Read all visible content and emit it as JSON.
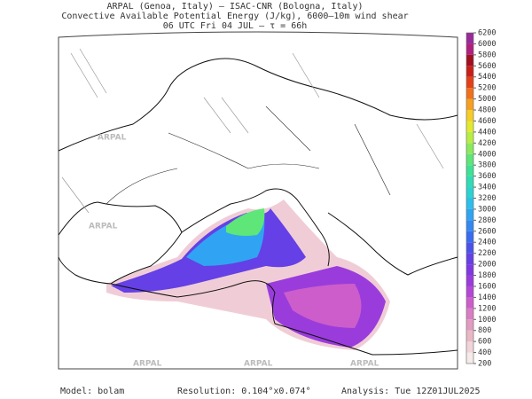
{
  "header": {
    "line1": "ARPAL (Genoa, Italy)  –  ISAC-CNR (Bologna, Italy)",
    "line2": "Convective Available Potential Energy (J/kg), 6000–10m wind shear",
    "line3": "06 UTC Fri 04 JUL  –  τ = 66h"
  },
  "watermark": "ARPAL",
  "colorbar": {
    "ticks": [
      200,
      400,
      600,
      800,
      1000,
      1200,
      1400,
      1600,
      1800,
      2000,
      2200,
      2400,
      2600,
      2800,
      3000,
      3200,
      3400,
      3600,
      3800,
      4000,
      4200,
      4400,
      4600,
      4800,
      5000,
      5200,
      5400,
      5600,
      5800,
      6000,
      6200
    ],
    "colors": [
      "#f6eaea",
      "#f0d4d8",
      "#e9b8c4",
      "#e29cc0",
      "#da7dc4",
      "#cc5dcb",
      "#b447d6",
      "#9a3cdc",
      "#7e39e2",
      "#6440e6",
      "#4a52ea",
      "#3a6cf0",
      "#3388f2",
      "#30a4f2",
      "#2bbfea",
      "#2bd2d2",
      "#30dcb4",
      "#3ee294",
      "#5ee678",
      "#8aea5c",
      "#b8ee44",
      "#e2ea30",
      "#f6cc28",
      "#f6a022",
      "#f0701c",
      "#e44018",
      "#c82018",
      "#a01020",
      "#b0207e",
      "#9a2a9a"
    ]
  },
  "footer": {
    "model": "Model: bolam",
    "resolution": "Resolution: 0.104°x0.074°",
    "analysis": "Analysis: Tue 12Z01JUL2025"
  }
}
